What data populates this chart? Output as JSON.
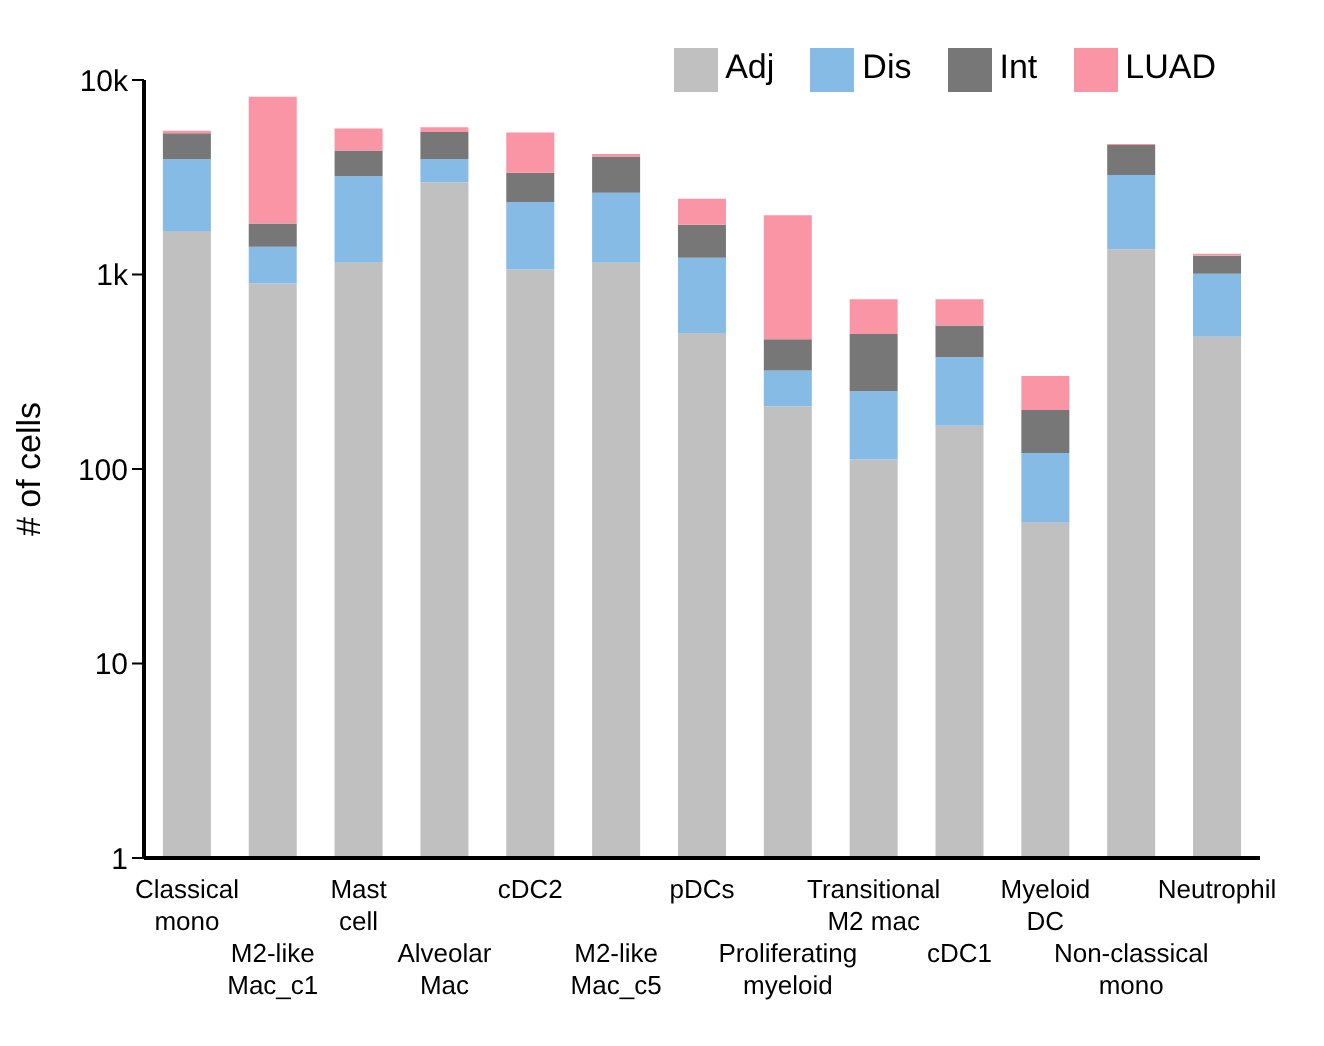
{
  "chart_data": {
    "type": "bar",
    "stacked": true,
    "log": "y",
    "ylabel": "# of cells",
    "categories": [
      "Classical mono",
      "M2-like Mac_c1",
      "Mast cell",
      "Alveolar Mac",
      "cDC2",
      "M2-like Mac_c5",
      "pDCs",
      "Proliferating myeloid",
      "Transitional M2 mac",
      "cDC1",
      "Myeloid DC",
      "Non-classical mono",
      "Neutrophil"
    ],
    "series": [
      {
        "name": "Adj",
        "color": "#c0c0c0",
        "values": [
          1660,
          900,
          1150,
          2980,
          1060,
          1150,
          500,
          210,
          112,
          167,
          53,
          1350,
          478
        ]
      },
      {
        "name": "Dis",
        "color": "#86bbe5",
        "values": [
          2250,
          490,
          2050,
          930,
          1300,
          1480,
          720,
          111,
          139,
          208,
          68,
          1900,
          532
        ]
      },
      {
        "name": "Int",
        "color": "#777777",
        "values": [
          1420,
          440,
          1140,
          1500,
          980,
          1410,
          580,
          143,
          243,
          171,
          80,
          1380,
          240
        ]
      },
      {
        "name": "LUAD",
        "color": "#f995a5",
        "values": [
          160,
          6380,
          1300,
          310,
          2030,
          120,
          650,
          1550,
          252,
          200,
          100,
          60,
          30
        ]
      }
    ],
    "ylim": [
      1,
      10000
    ],
    "yticks": [
      1,
      10,
      100,
      {
        "value": 1000,
        "label": "1k"
      },
      {
        "value": 10000,
        "label": "10k"
      }
    ],
    "legend": "top right"
  }
}
